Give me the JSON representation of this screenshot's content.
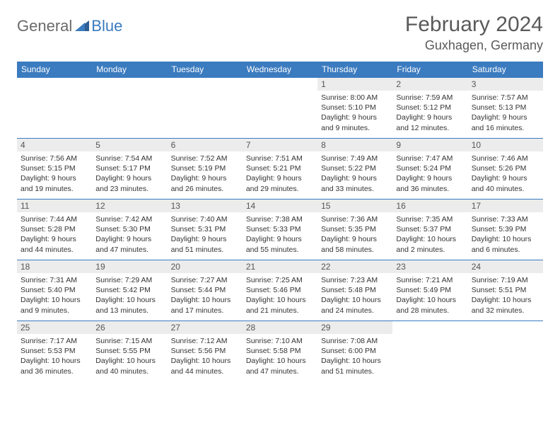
{
  "brand": {
    "part1": "General",
    "part2": "Blue"
  },
  "title": "February 2024",
  "location": "Guxhagen, Germany",
  "colors": {
    "header_bg": "#3b7bbf",
    "header_text": "#ffffff",
    "daynum_bg": "#ececec",
    "text": "#333333",
    "brand_gray": "#6a6a6a",
    "brand_blue": "#3b7bbf"
  },
  "columns": [
    "Sunday",
    "Monday",
    "Tuesday",
    "Wednesday",
    "Thursday",
    "Friday",
    "Saturday"
  ],
  "weeks": [
    [
      null,
      null,
      null,
      null,
      {
        "n": "1",
        "sr": "8:00 AM",
        "ss": "5:10 PM",
        "dl": "9 hours and 9 minutes."
      },
      {
        "n": "2",
        "sr": "7:59 AM",
        "ss": "5:12 PM",
        "dl": "9 hours and 12 minutes."
      },
      {
        "n": "3",
        "sr": "7:57 AM",
        "ss": "5:13 PM",
        "dl": "9 hours and 16 minutes."
      }
    ],
    [
      {
        "n": "4",
        "sr": "7:56 AM",
        "ss": "5:15 PM",
        "dl": "9 hours and 19 minutes."
      },
      {
        "n": "5",
        "sr": "7:54 AM",
        "ss": "5:17 PM",
        "dl": "9 hours and 23 minutes."
      },
      {
        "n": "6",
        "sr": "7:52 AM",
        "ss": "5:19 PM",
        "dl": "9 hours and 26 minutes."
      },
      {
        "n": "7",
        "sr": "7:51 AM",
        "ss": "5:21 PM",
        "dl": "9 hours and 29 minutes."
      },
      {
        "n": "8",
        "sr": "7:49 AM",
        "ss": "5:22 PM",
        "dl": "9 hours and 33 minutes."
      },
      {
        "n": "9",
        "sr": "7:47 AM",
        "ss": "5:24 PM",
        "dl": "9 hours and 36 minutes."
      },
      {
        "n": "10",
        "sr": "7:46 AM",
        "ss": "5:26 PM",
        "dl": "9 hours and 40 minutes."
      }
    ],
    [
      {
        "n": "11",
        "sr": "7:44 AM",
        "ss": "5:28 PM",
        "dl": "9 hours and 44 minutes."
      },
      {
        "n": "12",
        "sr": "7:42 AM",
        "ss": "5:30 PM",
        "dl": "9 hours and 47 minutes."
      },
      {
        "n": "13",
        "sr": "7:40 AM",
        "ss": "5:31 PM",
        "dl": "9 hours and 51 minutes."
      },
      {
        "n": "14",
        "sr": "7:38 AM",
        "ss": "5:33 PM",
        "dl": "9 hours and 55 minutes."
      },
      {
        "n": "15",
        "sr": "7:36 AM",
        "ss": "5:35 PM",
        "dl": "9 hours and 58 minutes."
      },
      {
        "n": "16",
        "sr": "7:35 AM",
        "ss": "5:37 PM",
        "dl": "10 hours and 2 minutes."
      },
      {
        "n": "17",
        "sr": "7:33 AM",
        "ss": "5:39 PM",
        "dl": "10 hours and 6 minutes."
      }
    ],
    [
      {
        "n": "18",
        "sr": "7:31 AM",
        "ss": "5:40 PM",
        "dl": "10 hours and 9 minutes."
      },
      {
        "n": "19",
        "sr": "7:29 AM",
        "ss": "5:42 PM",
        "dl": "10 hours and 13 minutes."
      },
      {
        "n": "20",
        "sr": "7:27 AM",
        "ss": "5:44 PM",
        "dl": "10 hours and 17 minutes."
      },
      {
        "n": "21",
        "sr": "7:25 AM",
        "ss": "5:46 PM",
        "dl": "10 hours and 21 minutes."
      },
      {
        "n": "22",
        "sr": "7:23 AM",
        "ss": "5:48 PM",
        "dl": "10 hours and 24 minutes."
      },
      {
        "n": "23",
        "sr": "7:21 AM",
        "ss": "5:49 PM",
        "dl": "10 hours and 28 minutes."
      },
      {
        "n": "24",
        "sr": "7:19 AM",
        "ss": "5:51 PM",
        "dl": "10 hours and 32 minutes."
      }
    ],
    [
      {
        "n": "25",
        "sr": "7:17 AM",
        "ss": "5:53 PM",
        "dl": "10 hours and 36 minutes."
      },
      {
        "n": "26",
        "sr": "7:15 AM",
        "ss": "5:55 PM",
        "dl": "10 hours and 40 minutes."
      },
      {
        "n": "27",
        "sr": "7:12 AM",
        "ss": "5:56 PM",
        "dl": "10 hours and 44 minutes."
      },
      {
        "n": "28",
        "sr": "7:10 AM",
        "ss": "5:58 PM",
        "dl": "10 hours and 47 minutes."
      },
      {
        "n": "29",
        "sr": "7:08 AM",
        "ss": "6:00 PM",
        "dl": "10 hours and 51 minutes."
      },
      null,
      null
    ]
  ],
  "labels": {
    "sunrise": "Sunrise:",
    "sunset": "Sunset:",
    "daylight": "Daylight:"
  }
}
